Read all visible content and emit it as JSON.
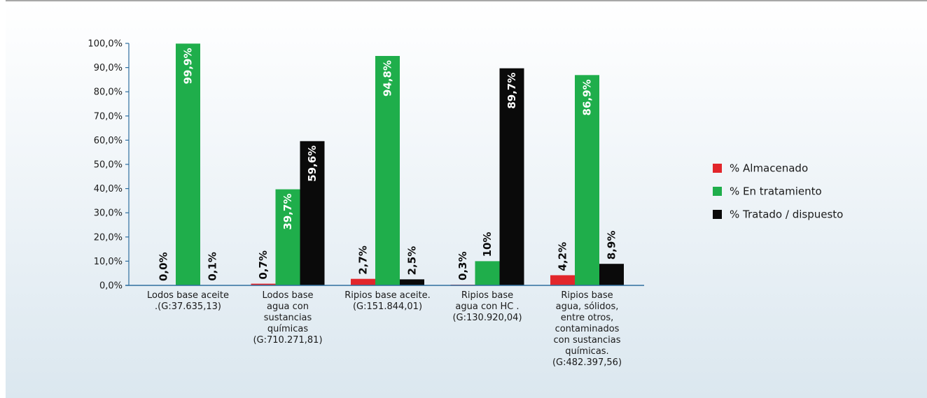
{
  "chart_data": {
    "type": "bar",
    "categories": [
      [
        "Lodos base aceite",
        ".(G:37.635,13)"
      ],
      [
        "Lodos base",
        "agua con",
        "sustancias",
        "químicas",
        "(G:710.271,81)"
      ],
      [
        "Ripios base aceite.",
        "(G:151.844,01)"
      ],
      [
        "Ripios base",
        "agua con HC .",
        "(G:130.920,04)"
      ],
      [
        "Ripios base",
        "agua, sólidos,",
        "entre otros,",
        "contaminados",
        "con sustancias",
        "químicas.",
        "(G:482.397,56)"
      ]
    ],
    "series": [
      {
        "name": "% Almacenado",
        "color": "#e2262b",
        "values": [
          0.0,
          0.7,
          2.7,
          0.3,
          4.2
        ],
        "labels": [
          "0,0%",
          "0,7%",
          "2,7%",
          "0,3%",
          "4,2%"
        ]
      },
      {
        "name": "% En tratamiento",
        "color": "#1fae4b",
        "values": [
          99.9,
          39.7,
          94.8,
          10.0,
          86.9
        ],
        "labels": [
          "99,9%",
          "39,7%",
          "94,8%",
          "10%",
          "86,9%"
        ]
      },
      {
        "name": "% Tratado / dispuesto",
        "color": "#0a0a0a",
        "values": [
          0.1,
          59.6,
          2.5,
          89.7,
          8.9
        ],
        "labels": [
          "0,1%",
          "59,6%",
          "2,5%",
          "89,7%",
          "8,9%"
        ]
      }
    ],
    "yticks": [
      "0,0%",
      "10,0%",
      "20,0%",
      "30,0%",
      "40,0%",
      "50,0%",
      "60,0%",
      "70,0%",
      "80,0%",
      "90,0%",
      "100,0%"
    ],
    "ylim": [
      0,
      100
    ],
    "legend_position": "right",
    "grid": false
  }
}
